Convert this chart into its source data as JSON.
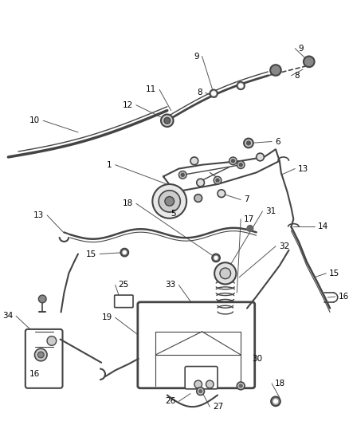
{
  "background_color": "#ffffff",
  "line_color": "#444444",
  "label_color": "#000000",
  "fig_width": 4.38,
  "fig_height": 5.33,
  "dpi": 100,
  "label_fs": 7.5
}
